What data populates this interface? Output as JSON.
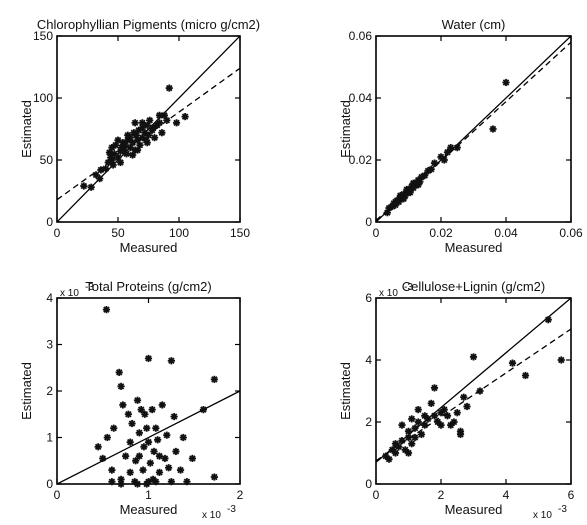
{
  "chart_data": [
    {
      "type": "scatter",
      "title": "Chlorophyllian Pigments (micro g/cm2)",
      "xlabel": "Measured",
      "ylabel": "Estimated",
      "xlim": [
        0,
        150
      ],
      "ylim": [
        0,
        150
      ],
      "xticks": [
        "0",
        "50",
        "100",
        "150"
      ],
      "yticks": [
        "0",
        "50",
        "100",
        "150"
      ],
      "grid": false,
      "lines": [
        {
          "style": "solid",
          "points": [
            [
              0,
              0
            ],
            [
              150,
              150
            ]
          ]
        },
        {
          "style": "dashed",
          "points": [
            [
              0,
              18
            ],
            [
              150,
              124
            ]
          ]
        }
      ],
      "points": [
        [
          22,
          29
        ],
        [
          28,
          28
        ],
        [
          32,
          38
        ],
        [
          36,
          42
        ],
        [
          40,
          43
        ],
        [
          42,
          48
        ],
        [
          43,
          56
        ],
        [
          45,
          50
        ],
        [
          45,
          60
        ],
        [
          47,
          55
        ],
        [
          48,
          62
        ],
        [
          50,
          52
        ],
        [
          50,
          66
        ],
        [
          52,
          57
        ],
        [
          53,
          60
        ],
        [
          54,
          64
        ],
        [
          55,
          58
        ],
        [
          56,
          62
        ],
        [
          57,
          55
        ],
        [
          58,
          66
        ],
        [
          60,
          60
        ],
        [
          60,
          68
        ],
        [
          62,
          64
        ],
        [
          63,
          72
        ],
        [
          64,
          58
        ],
        [
          65,
          70
        ],
        [
          66,
          66
        ],
        [
          67,
          74
        ],
        [
          68,
          62
        ],
        [
          70,
          68
        ],
        [
          70,
          76
        ],
        [
          72,
          72
        ],
        [
          73,
          66
        ],
        [
          74,
          78
        ],
        [
          75,
          70
        ],
        [
          76,
          82
        ],
        [
          78,
          74
        ],
        [
          79,
          76
        ],
        [
          80,
          68
        ],
        [
          82,
          78
        ],
        [
          84,
          80
        ],
        [
          86,
          72
        ],
        [
          88,
          86
        ],
        [
          90,
          82
        ],
        [
          92,
          108
        ],
        [
          58,
          70
        ],
        [
          52,
          48
        ],
        [
          46,
          46
        ],
        [
          44,
          52
        ],
        [
          62,
          54
        ],
        [
          35,
          35
        ],
        [
          70,
          80
        ],
        [
          84,
          86
        ],
        [
          105,
          85
        ],
        [
          98,
          80
        ],
        [
          66,
          58
        ],
        [
          74,
          64
        ],
        [
          64,
          80
        ]
      ]
    },
    {
      "type": "scatter",
      "title": "Water (cm)",
      "xlabel": "Measured",
      "ylabel": "Estimated",
      "xlim": [
        0,
        0.06
      ],
      "ylim": [
        0,
        0.06
      ],
      "xticks": [
        "0",
        "0.02",
        "0.04",
        "0.06"
      ],
      "yticks": [
        "0",
        "0.02",
        "0.04",
        "0.06"
      ],
      "grid": false,
      "lines": [
        {
          "style": "solid",
          "points": [
            [
              0,
              0
            ],
            [
              0.06,
              0.06
            ]
          ]
        },
        {
          "style": "dashed",
          "points": [
            [
              0,
              0.0005
            ],
            [
              0.06,
              0.058
            ]
          ]
        }
      ],
      "points": [
        [
          0.0035,
          0.003
        ],
        [
          0.004,
          0.0045
        ],
        [
          0.005,
          0.005
        ],
        [
          0.0055,
          0.006
        ],
        [
          0.006,
          0.0055
        ],
        [
          0.0065,
          0.007
        ],
        [
          0.007,
          0.0065
        ],
        [
          0.0075,
          0.008
        ],
        [
          0.008,
          0.0075
        ],
        [
          0.0085,
          0.009
        ],
        [
          0.009,
          0.0085
        ],
        [
          0.0095,
          0.0095
        ],
        [
          0.01,
          0.01
        ],
        [
          0.0105,
          0.0105
        ],
        [
          0.011,
          0.0115
        ],
        [
          0.0115,
          0.011
        ],
        [
          0.012,
          0.0125
        ],
        [
          0.0125,
          0.012
        ],
        [
          0.013,
          0.0135
        ],
        [
          0.0135,
          0.013
        ],
        [
          0.014,
          0.0145
        ],
        [
          0.015,
          0.015
        ],
        [
          0.016,
          0.0165
        ],
        [
          0.017,
          0.017
        ],
        [
          0.018,
          0.019
        ],
        [
          0.02,
          0.021
        ],
        [
          0.021,
          0.02
        ],
        [
          0.022,
          0.0225
        ],
        [
          0.023,
          0.024
        ],
        [
          0.025,
          0.024
        ],
        [
          0.036,
          0.03
        ],
        [
          0.04,
          0.045
        ],
        [
          0.006,
          0.0065
        ],
        [
          0.0075,
          0.0085
        ],
        [
          0.0095,
          0.0105
        ],
        [
          0.0115,
          0.0125
        ],
        [
          0.0085,
          0.0075
        ],
        [
          0.0105,
          0.0095
        ],
        [
          0.013,
          0.012
        ]
      ]
    },
    {
      "type": "scatter",
      "title": "Total Proteins (g/cm2)",
      "xlabel": "Measured",
      "ylabel": "Estimated",
      "x_multiplier": "x 10",
      "x_multiplier_exp": "-3",
      "y_multiplier": "x 10",
      "y_multiplier_exp": "-3",
      "xlim": [
        0,
        2
      ],
      "ylim": [
        0,
        4
      ],
      "xticks": [
        "0",
        "1",
        "2"
      ],
      "yticks": [
        "0",
        "1",
        "2",
        "3",
        "4"
      ],
      "grid": false,
      "lines": [
        {
          "style": "solid",
          "points": [
            [
              0,
              0
            ],
            [
              2,
              2
            ]
          ]
        }
      ],
      "points": [
        [
          0.54,
          3.75
        ],
        [
          0.45,
          0.8
        ],
        [
          0.5,
          0.55
        ],
        [
          0.55,
          1.0
        ],
        [
          0.6,
          0.3
        ],
        [
          0.6,
          0.05
        ],
        [
          0.62,
          1.2
        ],
        [
          0.68,
          2.4
        ],
        [
          0.7,
          2.1
        ],
        [
          0.7,
          0.1
        ],
        [
          0.72,
          1.7
        ],
        [
          0.75,
          0.6
        ],
        [
          0.78,
          1.5
        ],
        [
          0.8,
          0.9
        ],
        [
          0.8,
          0.25
        ],
        [
          0.82,
          1.3
        ],
        [
          0.85,
          0.05
        ],
        [
          0.86,
          0.5
        ],
        [
          0.88,
          1.8
        ],
        [
          0.9,
          0.6
        ],
        [
          0.9,
          1.1
        ],
        [
          0.92,
          1.6
        ],
        [
          0.94,
          0.3
        ],
        [
          0.95,
          0.8
        ],
        [
          0.96,
          1.5
        ],
        [
          0.98,
          0.0
        ],
        [
          0.98,
          1.2
        ],
        [
          1.0,
          0.9
        ],
        [
          1.0,
          2.7
        ],
        [
          1.02,
          0.45
        ],
        [
          1.04,
          1.6
        ],
        [
          1.05,
          0.1
        ],
        [
          1.06,
          0.7
        ],
        [
          1.08,
          1.2
        ],
        [
          1.1,
          0.95
        ],
        [
          1.12,
          0.25
        ],
        [
          1.15,
          1.7
        ],
        [
          1.18,
          0.55
        ],
        [
          1.2,
          1.05
        ],
        [
          1.22,
          0.35
        ],
        [
          1.25,
          2.65
        ],
        [
          1.25,
          0.05
        ],
        [
          1.28,
          1.45
        ],
        [
          1.3,
          0.7
        ],
        [
          1.35,
          0.3
        ],
        [
          1.38,
          1.0
        ],
        [
          1.42,
          0.05
        ],
        [
          1.48,
          0.55
        ],
        [
          1.6,
          1.6
        ],
        [
          1.72,
          2.25
        ],
        [
          1.72,
          0.15
        ],
        [
          0.88,
          0.0
        ],
        [
          1.08,
          0.05
        ],
        [
          1.12,
          0.6
        ],
        [
          1.0,
          0.05
        ],
        [
          0.7,
          0.0
        ]
      ]
    },
    {
      "type": "scatter",
      "title": "Cellulose+Lignin (g/cm2)",
      "xlabel": "Measured",
      "ylabel": "Estimated",
      "x_multiplier": "x 10",
      "x_multiplier_exp": "-3",
      "y_multiplier": "x 10",
      "y_multiplier_exp": "-3",
      "xlim": [
        0,
        6
      ],
      "ylim": [
        0,
        6
      ],
      "xticks": [
        "0",
        "2",
        "4",
        "6"
      ],
      "yticks": [
        "0",
        "2",
        "4",
        "6"
      ],
      "grid": false,
      "lines": [
        {
          "style": "solid",
          "points": [
            [
              0,
              0.7
            ],
            [
              6,
              6
            ]
          ]
        },
        {
          "style": "dashed",
          "points": [
            [
              0,
              0.75
            ],
            [
              6,
              5.0
            ]
          ]
        }
      ],
      "points": [
        [
          0.3,
          0.9
        ],
        [
          0.4,
          0.8
        ],
        [
          0.5,
          1.1
        ],
        [
          0.6,
          1.0
        ],
        [
          0.6,
          1.3
        ],
        [
          0.7,
          1.2
        ],
        [
          0.8,
          1.4
        ],
        [
          0.9,
          1.1
        ],
        [
          1.0,
          1.5
        ],
        [
          1.0,
          1.7
        ],
        [
          1.1,
          1.3
        ],
        [
          1.1,
          2.1
        ],
        [
          1.2,
          1.8
        ],
        [
          1.2,
          1.5
        ],
        [
          1.3,
          2.0
        ],
        [
          1.4,
          1.6
        ],
        [
          1.5,
          2.2
        ],
        [
          1.5,
          1.9
        ],
        [
          1.6,
          2.1
        ],
        [
          1.7,
          2.6
        ],
        [
          1.8,
          2.2
        ],
        [
          1.9,
          2.0
        ],
        [
          2.0,
          2.3
        ],
        [
          2.0,
          1.9
        ],
        [
          2.1,
          2.4
        ],
        [
          2.2,
          2.2
        ],
        [
          2.3,
          1.9
        ],
        [
          2.4,
          2.0
        ],
        [
          2.5,
          2.3
        ],
        [
          2.6,
          1.6
        ],
        [
          2.7,
          2.8
        ],
        [
          2.8,
          2.5
        ],
        [
          3.0,
          4.1
        ],
        [
          3.2,
          3.0
        ],
        [
          4.2,
          3.9
        ],
        [
          4.6,
          3.5
        ],
        [
          5.3,
          5.3
        ],
        [
          5.7,
          4.0
        ],
        [
          1.8,
          3.1
        ],
        [
          2.6,
          1.7
        ],
        [
          1.3,
          2.4
        ],
        [
          1.0,
          1.0
        ],
        [
          0.8,
          1.9
        ]
      ]
    }
  ]
}
